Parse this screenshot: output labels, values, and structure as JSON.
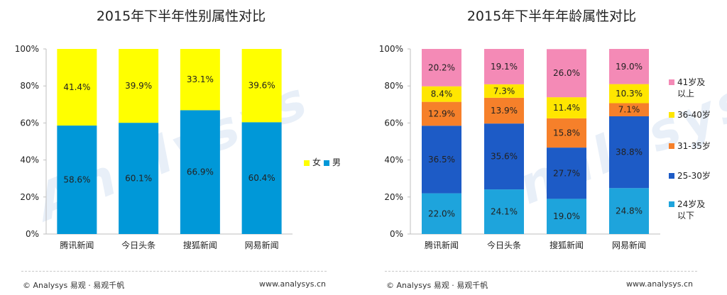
{
  "footer": {
    "copyright": "© Analysys 易观 · 易观千帆",
    "site": "www.analysys.cn"
  },
  "watermark": "Analysys",
  "chart_data": [
    {
      "type": "bar",
      "stacked": true,
      "title": "2015年下半年性别属性对比",
      "categories": [
        "腾讯新闻",
        "今日头条",
        "搜狐新闻",
        "网易新闻"
      ],
      "ylim": [
        0,
        100
      ],
      "yticks": [
        "0%",
        "20%",
        "40%",
        "60%",
        "80%",
        "100%"
      ],
      "legend": "right",
      "legend_inline": true,
      "series": [
        {
          "name": "男",
          "color": "#0098d8",
          "values": [
            58.6,
            60.1,
            66.9,
            60.4
          ],
          "labels": [
            "58.6%",
            "60.1%",
            "66.9%",
            "60.4%"
          ]
        },
        {
          "name": "女",
          "color": "#ffff00",
          "values": [
            41.4,
            39.9,
            33.1,
            39.6
          ],
          "labels": [
            "41.4%",
            "39.9%",
            "33.1%",
            "39.6%"
          ]
        }
      ]
    },
    {
      "type": "bar",
      "stacked": true,
      "title": "2015年下半年年龄属性对比",
      "categories": [
        "腾讯新闻",
        "今日头条",
        "搜狐新闻",
        "网易新闻"
      ],
      "ylim": [
        0,
        100
      ],
      "yticks": [
        "0%",
        "20%",
        "40%",
        "60%",
        "80%",
        "100%"
      ],
      "legend": "right",
      "series": [
        {
          "name": "24岁及以下",
          "legend_lines": [
            "24岁及",
            "以下"
          ],
          "color": "#1ea4dc",
          "values": [
            22.0,
            24.1,
            19.0,
            24.8
          ],
          "labels": [
            "22.0%",
            "24.1%",
            "19.0%",
            "24.8%"
          ]
        },
        {
          "name": "25-30岁",
          "legend_lines": [
            "25-30岁"
          ],
          "color": "#1d5bc6",
          "values": [
            36.5,
            35.6,
            27.7,
            38.8
          ],
          "labels": [
            "36.5%",
            "35.6%",
            "27.7%",
            "38.8%"
          ]
        },
        {
          "name": "31-35岁",
          "legend_lines": [
            "31-35岁"
          ],
          "color": "#f6802a",
          "values": [
            12.9,
            13.9,
            15.8,
            7.1
          ],
          "labels": [
            "12.9%",
            "13.9%",
            "15.8%",
            "7.1%"
          ]
        },
        {
          "name": "36-40岁",
          "legend_lines": [
            "36-40岁"
          ],
          "color": "#ffe600",
          "values": [
            8.4,
            7.3,
            11.4,
            10.3
          ],
          "labels": [
            "8.4%",
            "7.3%",
            "11.4%",
            "10.3%"
          ]
        },
        {
          "name": "41岁及以上",
          "legend_lines": [
            "41岁及",
            "以上"
          ],
          "color": "#f48ab6",
          "values": [
            20.2,
            19.1,
            26.0,
            19.0
          ],
          "labels": [
            "20.2%",
            "19.1%",
            "26.0%",
            "19.0%"
          ]
        }
      ]
    }
  ]
}
